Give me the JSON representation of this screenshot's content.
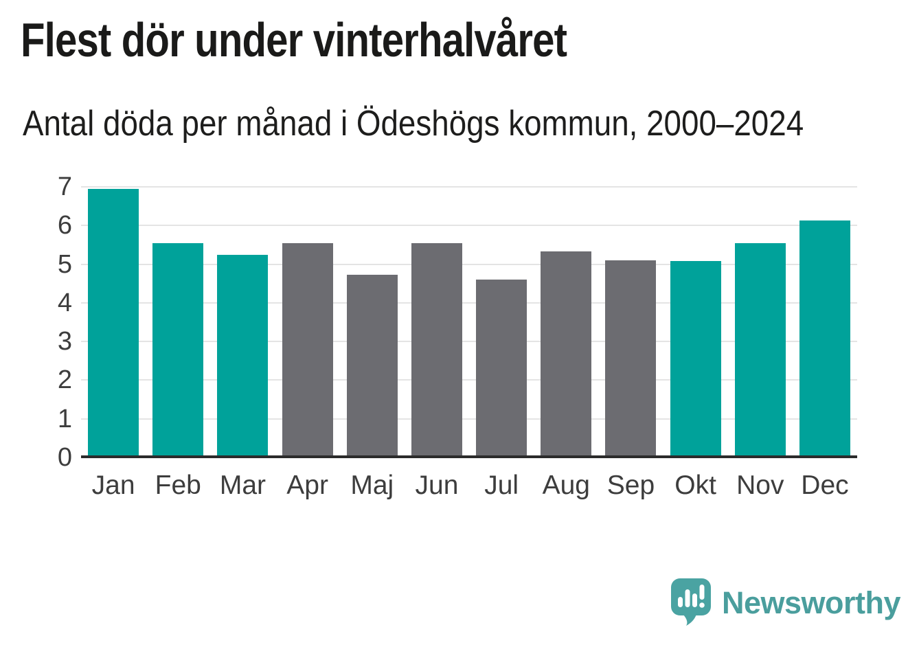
{
  "header": {
    "title": "Flest dör under vinterhalvåret",
    "subtitle": "Antal döda per månad i Ödeshögs kommun, 2000–2024"
  },
  "chart_data": {
    "type": "bar",
    "title": "Flest dör under vinterhalvåret",
    "subtitle": "Antal döda per månad i Ödeshögs kommun, 2000–2024",
    "categories": [
      "Jan",
      "Feb",
      "Mar",
      "Apr",
      "Maj",
      "Jun",
      "Jul",
      "Aug",
      "Sep",
      "Okt",
      "Nov",
      "Dec"
    ],
    "values": [
      6.95,
      5.54,
      5.25,
      5.54,
      4.73,
      5.54,
      4.6,
      5.33,
      5.1,
      5.09,
      5.54,
      6.13
    ],
    "bar_colors": [
      "teal",
      "teal",
      "teal",
      "gray",
      "gray",
      "gray",
      "gray",
      "gray",
      "gray",
      "teal",
      "teal",
      "teal"
    ],
    "palette": {
      "teal": "#00a29a",
      "gray": "#6c6c71"
    },
    "xlabel": "",
    "ylabel": "",
    "ylim": [
      0,
      7
    ],
    "yticks": [
      0,
      1,
      2,
      3,
      4,
      5,
      6,
      7
    ],
    "grid": "horizontal",
    "gridline_color": "#e4e4e4",
    "axis_line_color": "#2b2b2b",
    "tick_label_color": "#3d3d3d",
    "legend": "none",
    "background": "#ffffff"
  },
  "footer": {
    "brand": "Newsworthy",
    "logo_icon": "newsworthy-speech-bubble-chart-icon",
    "brand_color": "#4a9e9d",
    "icon_color": "#4aa3a2"
  }
}
